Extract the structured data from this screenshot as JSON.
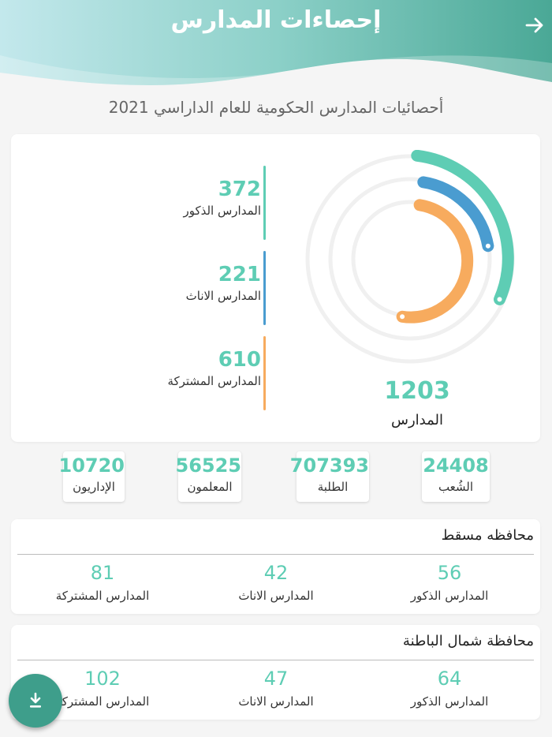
{
  "header": {
    "title": "إحصاءات المدارس"
  },
  "subtitle": "أحصائيات المدارس الحكومية  للعام الداراسي 2021",
  "summary": {
    "boys": {
      "value": "372",
      "label": "المدارس الذكور",
      "color": "#5ecdb4"
    },
    "girls": {
      "value": "221",
      "label": "المدارس الاناث",
      "color": "#4a9cd0"
    },
    "mixed": {
      "value": "610",
      "label": "المدارس المشتركة",
      "color": "#f7ab5e"
    },
    "total": {
      "value": "1203",
      "label": "المدارس"
    }
  },
  "stats": [
    {
      "value": "24408",
      "label": "الشُعب"
    },
    {
      "value": "707393",
      "label": "الطلبة"
    },
    {
      "value": "56525",
      "label": "المعلمون"
    },
    {
      "value": "10720",
      "label": "الإداريون"
    }
  ],
  "governorates": [
    {
      "name": "محافظه مسقط",
      "boys": {
        "value": "56",
        "label": "المدارس الذكور"
      },
      "girls": {
        "value": "42",
        "label": "المدارس الاناث"
      },
      "mixed": {
        "value": "81",
        "label": "المدارس المشتركة"
      }
    },
    {
      "name": "محافظة شمال الباطنة",
      "boys": {
        "value": "64",
        "label": "المدارس الذكور"
      },
      "girls": {
        "value": "47",
        "label": "المدارس الاناث"
      },
      "mixed": {
        "value": "102",
        "label": "المدارس المشتركة"
      }
    }
  ],
  "icons": {
    "back": "arrow-right-icon",
    "download": "download-icon"
  },
  "colors": {
    "accent": "#5ecdb4",
    "header_start": "#bfe6ea",
    "header_end": "#4fae9a",
    "fab": "#3e9e8b"
  }
}
